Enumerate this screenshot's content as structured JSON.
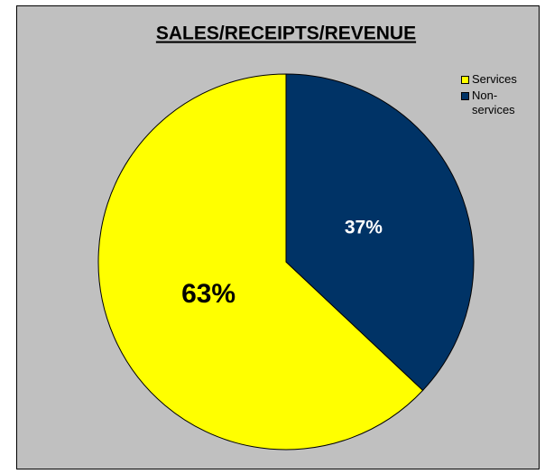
{
  "chart_data": {
    "type": "pie",
    "title": "SALES/RECEIPTS/REVENUE",
    "categories": [
      "Services",
      "Non-services"
    ],
    "values": [
      63,
      37
    ],
    "value_labels": [
      "63%",
      "37%"
    ],
    "colors": [
      "#ffff00",
      "#003366"
    ],
    "legend": "top-right"
  }
}
